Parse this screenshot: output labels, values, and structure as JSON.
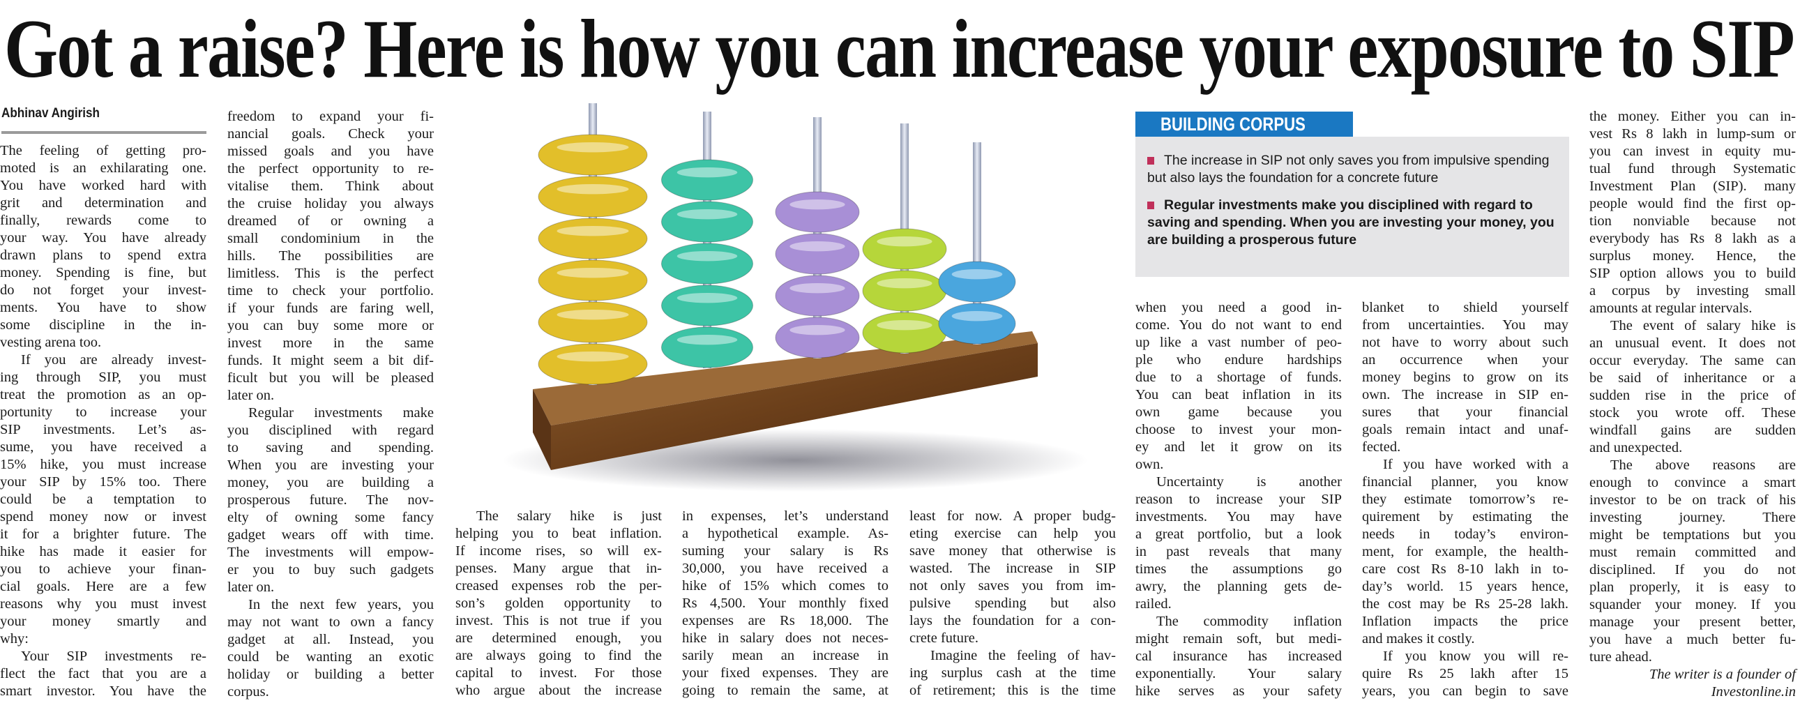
{
  "headline": "Got a raise? Here is how you can increase your exposure to SIP",
  "byline": "Abhinav Angirish",
  "sidebar_box": {
    "title": "BUILDING CORPUS",
    "items": [
      {
        "text": "The increase in SIP not only saves you from impulsive spending but also lays the foundation for a concrete future",
        "bold": false
      },
      {
        "text": "Regular investments make you disciplined with regard to saving and spending. When you are investing your money, you are building a prosperous future",
        "bold": true
      }
    ],
    "colors": {
      "title_bg": "#1a78c2",
      "body_bg": "#e5e5e7",
      "bullet": "#c0305a"
    }
  },
  "photo": {
    "subject": "abacus-illustration",
    "bead_colors": [
      "#e2bf2a",
      "#3dc4a6",
      "#a88fd6",
      "#b6d63a",
      "#4aa6de"
    ]
  },
  "columns": [
    {
      "paragraphs": [
        {
          "lines": [
            "The feeling of getting pro-",
            "moted is an exhilarating one.",
            "You have worked hard with",
            "grit and determination and",
            "finally, rewards come to",
            "your way. You have already",
            "drawn plans to spend extra",
            "money. Spending is fine, but",
            "do not forget your invest-",
            "ments. You have to show",
            "some discipline in the in-",
            "vesting arena too."
          ]
        },
        {
          "lines": [
            "If you are already invest-",
            "ing through SIP, you must",
            "treat the promotion as an op-",
            "portunity to increase your",
            "SIP investments. Let’s as-",
            "sume, you have received a",
            "15% hike, you must increase",
            "your SIP by 15% too. There",
            "could be a temptation to",
            "spend money now or invest",
            "it for a brighter future. The",
            "hike has made it easier for",
            "you to achieve your finan-",
            "cial goals. Here are a few",
            "reasons why you must invest",
            "your money smartly and",
            "why:"
          ]
        },
        {
          "lines": [
            "Your SIP investments re-",
            "flect the fact that you are a",
            "smart investor. You have the"
          ]
        }
      ]
    },
    {
      "paragraphs": [
        {
          "lines": [
            "freedom to expand your fi-",
            "nancial goals. Check your",
            "missed goals and you have",
            "the perfect opportunity to re-",
            "vitalise them. Think about",
            "the cruise holiday you always",
            "dreamed of or owning a",
            "small condominium in the",
            "hills. The possibilities are",
            "limitless. This is the perfect",
            "time to check your portfolio.",
            "if your funds are faring well,",
            "you can buy some more or",
            "invest more in the same",
            "funds. It might seem a bit dif-",
            "ficult but you will be pleased",
            "later on."
          ]
        },
        {
          "lines": [
            "Regular investments make",
            "you disciplined with regard",
            "to saving and spending.",
            "When you are investing your",
            "money, you are building a",
            "prosperous future. The nov-",
            "elty of owning some fancy",
            "gadget wears off with time.",
            "The investments will empow-",
            "er you to buy such gadgets",
            "later on."
          ]
        },
        {
          "lines": [
            "In the next few years, you",
            "may not want to own a fancy",
            "gadget at all. Instead, you",
            "could be wanting an exotic",
            "holiday or building a better",
            "corpus."
          ]
        }
      ]
    },
    {
      "paragraphs": [
        {
          "lines": [
            "The salary hike is just",
            "helping you to beat inflation.",
            "If income rises, so will ex-",
            "penses. Many argue that in-",
            "creased expenses rob the per-",
            "son’s golden opportunity to",
            "invest. This is not true if you",
            "are determined enough, you",
            "are always going to find the",
            "capital to invest. For those",
            "who argue about the increase"
          ]
        }
      ]
    },
    {
      "paragraphs": [
        {
          "lines": [
            "in expenses, let’s understand",
            "a hypothetical example. As-",
            "suming your salary is Rs",
            "30,000, you have received a",
            "hike of 15% which comes to",
            "Rs 4,500. Your monthly fixed",
            "expenses are Rs 18,000. The",
            "hike in salary does not neces-",
            "sarily mean an increase in",
            "your fixed expenses. They are",
            "going to remain the same, at"
          ]
        }
      ]
    },
    {
      "paragraphs": [
        {
          "lines": [
            "least for now. A proper budg-",
            "eting exercise can help you",
            "save money that otherwise is",
            "wasted. The increase in SIP",
            "not only saves you from im-",
            "pulsive spending but also",
            "lays the foundation for a con-",
            "crete future."
          ]
        },
        {
          "lines": [
            "Imagine the feeling of hav-",
            "ing surplus cash at the time",
            "of retirement; this is the time"
          ]
        }
      ]
    },
    {
      "paragraphs": [
        {
          "lines": [
            "when you need a good in-",
            "come. You do not want to end",
            "up like a vast number of peo-",
            "ple who endure hardships",
            "due to a shortage of funds.",
            "You can beat inflation in its",
            "own game because you",
            "choose to invest your mon-",
            "ey and let it grow on its",
            "own."
          ]
        },
        {
          "lines": [
            "Uncertainty is another",
            "reason to increase your SIP",
            "investments. You may have",
            "a great portfolio, but a look",
            "in past reveals that many",
            "times the assumptions go",
            "awry, the planning gets de-",
            "railed."
          ]
        },
        {
          "lines": [
            "The commodity inflation",
            "might remain soft, but medi-",
            "cal insurance has increased",
            "exponentially. Your salary",
            "hike serves as your safety"
          ]
        }
      ]
    },
    {
      "paragraphs": [
        {
          "lines": [
            "blanket to shield yourself",
            "from uncertainties. You may",
            "not have to worry about such",
            "an occurrence when your",
            "money begins to grow on its",
            "own. The increase in SIP en-",
            "sures that your financial",
            "goals remain intact and unaf-",
            "fected."
          ]
        },
        {
          "lines": [
            "If you have worked with a",
            "financial planner, you know",
            "they estimate tomorrow’s re-",
            "quirement by estimating the",
            "needs in today’s environ-",
            "ment, for example, the health-",
            "care cost Rs 8-10 lakh in to-",
            "day’s world. 15 years hence,",
            "the cost may be Rs 25-28 lakh.",
            "Inflation impacts the price",
            "and makes it costly."
          ]
        },
        {
          "lines": [
            "If you know you will re-",
            "quire Rs 25 lakh after 15",
            "years, you can begin to save"
          ]
        }
      ]
    },
    {
      "paragraphs": [
        {
          "lines": [
            "the money. Either you can in-",
            "vest Rs 8 lakh in lump-sum or",
            "you can invest in equity mu-",
            "tual fund through Systematic",
            "Investment Plan (SIP). many",
            "people would find the first op-",
            "tion nonviable because not",
            "everybody has Rs 8 lakh as a",
            "surplus money. Hence, the",
            "SIP option allows you to build",
            "a corpus by investing small",
            "amounts at regular intervals."
          ]
        },
        {
          "lines": [
            "The event of salary hike is",
            "an unusual event. It does not",
            "occur everyday. The same can",
            "be said of inheritance or a",
            "sudden rise in the price of",
            "stock you wrote off. These",
            "windfall gains are sudden",
            "and unexpected."
          ]
        },
        {
          "lines": [
            "The above reasons are",
            "enough to convince a smart",
            "investor to be on track of his",
            "investing journey. There",
            "might be temptations but you",
            "must remain committed and",
            "disciplined. If you do not",
            "plan properly, it is easy to",
            "squander your money. If you",
            "manage your present better,",
            "you have a much better fu-",
            "ture ahead."
          ]
        }
      ]
    }
  ],
  "signature": [
    "The writer is a founder of",
    "Investonline.in"
  ]
}
